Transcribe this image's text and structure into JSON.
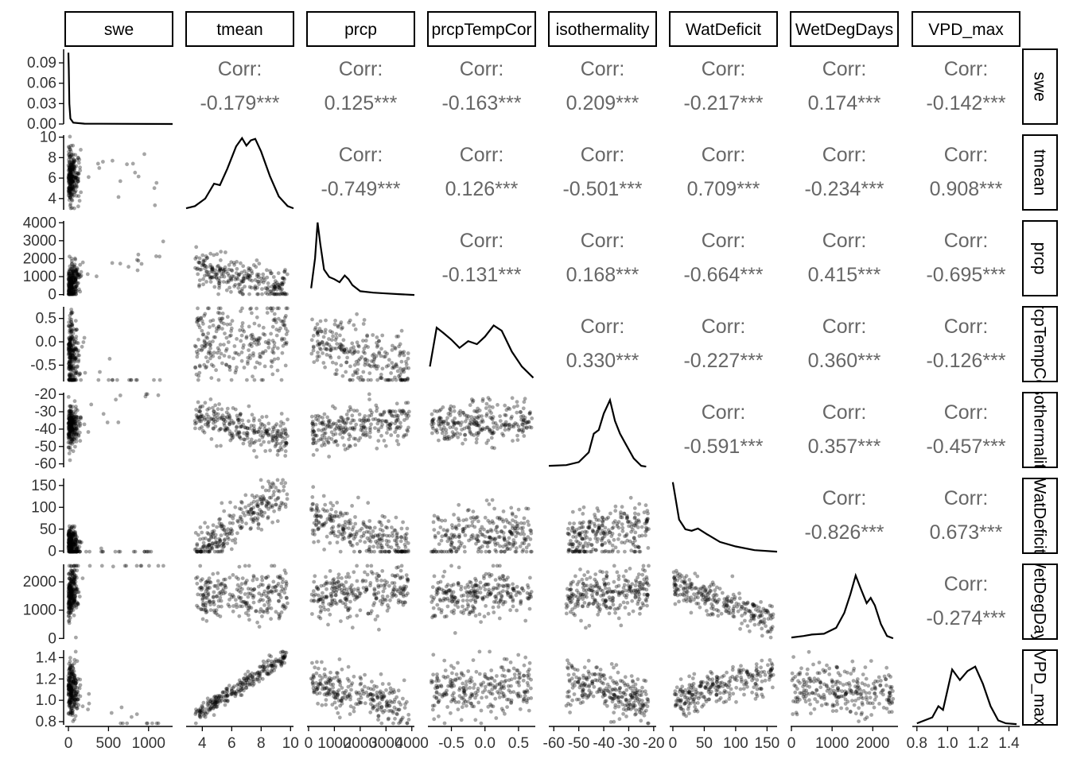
{
  "chart_data": {
    "type": "scatter-matrix",
    "variables": [
      "swe",
      "tmean",
      "prcp",
      "prcpTempCor",
      "isothermality",
      "WatDeficit",
      "WetDegDays",
      "VPD_max"
    ],
    "correlation_prefix": "Corr:",
    "correlations": [
      {
        "row": "swe",
        "col": "tmean",
        "value": "-0.179***"
      },
      {
        "row": "swe",
        "col": "prcp",
        "value": "0.125***"
      },
      {
        "row": "swe",
        "col": "prcpTempCor",
        "value": "-0.163***"
      },
      {
        "row": "swe",
        "col": "isothermality",
        "value": "0.209***"
      },
      {
        "row": "swe",
        "col": "WatDeficit",
        "value": "-0.217***"
      },
      {
        "row": "swe",
        "col": "WetDegDays",
        "value": "0.174***"
      },
      {
        "row": "swe",
        "col": "VPD_max",
        "value": "-0.142***"
      },
      {
        "row": "tmean",
        "col": "prcp",
        "value": "-0.749***"
      },
      {
        "row": "tmean",
        "col": "prcpTempCor",
        "value": "0.126***"
      },
      {
        "row": "tmean",
        "col": "isothermality",
        "value": "-0.501***"
      },
      {
        "row": "tmean",
        "col": "WatDeficit",
        "value": "0.709***"
      },
      {
        "row": "tmean",
        "col": "WetDegDays",
        "value": "-0.234***"
      },
      {
        "row": "tmean",
        "col": "VPD_max",
        "value": "0.908***"
      },
      {
        "row": "prcp",
        "col": "prcpTempCor",
        "value": "-0.131***"
      },
      {
        "row": "prcp",
        "col": "isothermality",
        "value": "0.168***"
      },
      {
        "row": "prcp",
        "col": "WatDeficit",
        "value": "-0.664***"
      },
      {
        "row": "prcp",
        "col": "WetDegDays",
        "value": "0.415***"
      },
      {
        "row": "prcp",
        "col": "VPD_max",
        "value": "-0.695***"
      },
      {
        "row": "prcpTempCor",
        "col": "isothermality",
        "value": "0.330***"
      },
      {
        "row": "prcpTempCor",
        "col": "WatDeficit",
        "value": "-0.227***"
      },
      {
        "row": "prcpTempCor",
        "col": "WetDegDays",
        "value": "0.360***"
      },
      {
        "row": "prcpTempCor",
        "col": "VPD_max",
        "value": "-0.126***"
      },
      {
        "row": "isothermality",
        "col": "WatDeficit",
        "value": "-0.591***"
      },
      {
        "row": "isothermality",
        "col": "WetDegDays",
        "value": "0.357***"
      },
      {
        "row": "isothermality",
        "col": "VPD_max",
        "value": "-0.457***"
      },
      {
        "row": "WatDeficit",
        "col": "WetDegDays",
        "value": "-0.826***"
      },
      {
        "row": "WatDeficit",
        "col": "VPD_max",
        "value": "0.673***"
      },
      {
        "row": "WetDegDays",
        "col": "VPD_max",
        "value": "-0.274***"
      }
    ],
    "axes": {
      "swe": {
        "range": [
          -40,
          1300
        ],
        "ticks": [
          0,
          500,
          1000
        ],
        "tick_labels": [
          "0",
          "500",
          "1000"
        ],
        "density_range": [
          0,
          0.11
        ],
        "density_ticks": [
          0.0,
          0.03,
          0.06,
          0.09
        ],
        "density_tick_labels": [
          "0.00",
          "0.03",
          "0.06",
          "0.09"
        ]
      },
      "tmean": {
        "range": [
          2.9,
          10.2
        ],
        "ticks": [
          4,
          6,
          8,
          10
        ],
        "tick_labels": [
          "4",
          "6",
          "8",
          "10"
        ]
      },
      "prcp": {
        "range": [
          -60,
          4100
        ],
        "ticks": [
          0,
          1000,
          2000,
          3000,
          4000
        ],
        "tick_labels": [
          "0",
          "1000",
          "2000",
          "3000",
          "4000"
        ]
      },
      "prcpTempCor": {
        "range": [
          -0.85,
          0.75
        ],
        "ticks": [
          -0.5,
          0.0,
          0.5
        ],
        "tick_labels": [
          "-0.5",
          "0.0",
          "0.5"
        ]
      },
      "isothermality": {
        "range": [
          -62,
          -19
        ],
        "ticks": [
          -60,
          -50,
          -40,
          -30,
          -20
        ],
        "tick_labels": [
          "-60",
          "-50",
          "-40",
          "-30",
          "-20"
        ]
      },
      "WatDeficit": {
        "range": [
          -5,
          166
        ],
        "ticks": [
          0,
          50,
          100,
          150
        ],
        "tick_labels": [
          "0",
          "50",
          "100",
          "150"
        ]
      },
      "WetDegDays": {
        "range": [
          -20,
          2620
        ],
        "ticks": [
          0,
          1000,
          2000
        ],
        "tick_labels": [
          "0",
          "1000",
          "2000"
        ]
      },
      "VPD_max": {
        "range": [
          0.77,
          1.47
        ],
        "ticks": [
          0.8,
          1.0,
          1.2,
          1.4
        ],
        "tick_labels": [
          "0.8",
          "1.0",
          "1.2",
          "1.4"
        ]
      }
    },
    "density_curves": {
      "swe": [
        [
          0,
          0.105
        ],
        [
          5,
          0.08
        ],
        [
          12,
          0.03
        ],
        [
          25,
          0.008
        ],
        [
          60,
          0.002
        ],
        [
          200,
          0.0005
        ],
        [
          1300,
          0.0
        ]
      ],
      "tmean": [
        [
          2.9,
          0.02
        ],
        [
          3.5,
          0.05
        ],
        [
          4.2,
          0.15
        ],
        [
          4.8,
          0.35
        ],
        [
          5.2,
          0.33
        ],
        [
          5.7,
          0.55
        ],
        [
          6.3,
          0.85
        ],
        [
          6.7,
          0.96
        ],
        [
          7.0,
          0.86
        ],
        [
          7.3,
          0.93
        ],
        [
          7.6,
          0.95
        ],
        [
          8.0,
          0.78
        ],
        [
          8.6,
          0.45
        ],
        [
          9.2,
          0.18
        ],
        [
          9.8,
          0.05
        ],
        [
          10.2,
          0.02
        ]
      ],
      "prcp": [
        [
          100,
          0.1
        ],
        [
          250,
          0.5
        ],
        [
          350,
          0.98
        ],
        [
          450,
          0.7
        ],
        [
          600,
          0.35
        ],
        [
          800,
          0.25
        ],
        [
          1000,
          0.22
        ],
        [
          1200,
          0.18
        ],
        [
          1400,
          0.27
        ],
        [
          1550,
          0.22
        ],
        [
          1700,
          0.14
        ],
        [
          2000,
          0.06
        ],
        [
          2500,
          0.04
        ],
        [
          3000,
          0.03
        ],
        [
          3500,
          0.02
        ],
        [
          4100,
          0.01
        ]
      ],
      "prcpTempCor": [
        [
          -0.82,
          0.2
        ],
        [
          -0.72,
          0.72
        ],
        [
          -0.62,
          0.65
        ],
        [
          -0.5,
          0.56
        ],
        [
          -0.38,
          0.45
        ],
        [
          -0.25,
          0.54
        ],
        [
          -0.12,
          0.5
        ],
        [
          0.0,
          0.6
        ],
        [
          0.13,
          0.75
        ],
        [
          0.25,
          0.68
        ],
        [
          0.4,
          0.4
        ],
        [
          0.55,
          0.2
        ],
        [
          0.72,
          0.05
        ]
      ],
      "isothermality": [
        [
          -62,
          0.02
        ],
        [
          -55,
          0.03
        ],
        [
          -50,
          0.07
        ],
        [
          -46,
          0.2
        ],
        [
          -44,
          0.45
        ],
        [
          -42,
          0.5
        ],
        [
          -40,
          0.72
        ],
        [
          -37.5,
          0.9
        ],
        [
          -35.5,
          0.62
        ],
        [
          -33.5,
          0.45
        ],
        [
          -31,
          0.3
        ],
        [
          -28,
          0.12
        ],
        [
          -25,
          0.02
        ],
        [
          -23,
          0.01
        ]
      ],
      "WatDeficit": [
        [
          0,
          0.95
        ],
        [
          3,
          0.8
        ],
        [
          10,
          0.45
        ],
        [
          20,
          0.32
        ],
        [
          30,
          0.3
        ],
        [
          40,
          0.33
        ],
        [
          55,
          0.25
        ],
        [
          75,
          0.15
        ],
        [
          100,
          0.09
        ],
        [
          130,
          0.04
        ],
        [
          166,
          0.02
        ]
      ],
      "WetDegDays": [
        [
          0,
          0.02
        ],
        [
          300,
          0.04
        ],
        [
          500,
          0.06
        ],
        [
          800,
          0.07
        ],
        [
          1100,
          0.15
        ],
        [
          1300,
          0.35
        ],
        [
          1450,
          0.6
        ],
        [
          1580,
          0.85
        ],
        [
          1700,
          0.68
        ],
        [
          1850,
          0.48
        ],
        [
          1950,
          0.55
        ],
        [
          2050,
          0.45
        ],
        [
          2200,
          0.2
        ],
        [
          2350,
          0.04
        ],
        [
          2500,
          0.01
        ]
      ],
      "VPD_max": [
        [
          0.8,
          0.02
        ],
        [
          0.9,
          0.1
        ],
        [
          0.94,
          0.25
        ],
        [
          0.97,
          0.2
        ],
        [
          1.03,
          0.74
        ],
        [
          1.08,
          0.6
        ],
        [
          1.13,
          0.72
        ],
        [
          1.18,
          0.78
        ],
        [
          1.23,
          0.55
        ],
        [
          1.28,
          0.25
        ],
        [
          1.33,
          0.06
        ],
        [
          1.38,
          0.02
        ],
        [
          1.45,
          0.01
        ]
      ]
    },
    "scatter_trends": {
      "tmean|swe": {
        "x": [
          0,
          120
        ],
        "y": [
          6,
          6
        ],
        "spread": 1.2
      },
      "prcp|swe": {
        "x": [
          0,
          120
        ],
        "y": [
          600,
          800
        ],
        "spread": 500
      },
      "prcp|tmean": {
        "x": [
          3.5,
          9.8
        ],
        "y": [
          1600,
          300
        ],
        "spread": 500
      },
      "prcpTempCor|swe": {
        "x": [
          0,
          150
        ],
        "y": [
          -0.2,
          -0.5
        ],
        "spread": 0.4
      },
      "prcpTempCor|tmean": {
        "x": [
          3.5,
          9.8
        ],
        "y": [
          0,
          0
        ],
        "spread": 0.45
      },
      "prcpTempCor|prcp": {
        "x": [
          100,
          3900
        ],
        "y": [
          0,
          -0.7
        ],
        "spread": 0.35
      },
      "isothermality|swe": {
        "x": [
          0,
          150
        ],
        "y": [
          -38,
          -35
        ],
        "spread": 6
      },
      "isothermality|tmean": {
        "x": [
          3.5,
          9.8
        ],
        "y": [
          -33,
          -45
        ],
        "spread": 5
      },
      "isothermality|prcp": {
        "x": [
          100,
          3900
        ],
        "y": [
          -42,
          -35
        ],
        "spread": 6
      },
      "isothermality|prcpTempCor": {
        "x": [
          -0.8,
          0.7
        ],
        "y": [
          -38,
          -35
        ],
        "spread": 6
      },
      "WatDeficit|swe": {
        "x": [
          0,
          150
        ],
        "y": [
          20,
          5
        ],
        "spread": 18
      },
      "WatDeficit|tmean": {
        "x": [
          3.5,
          9.8
        ],
        "y": [
          2,
          140
        ],
        "spread": 25
      },
      "WatDeficit|prcp": {
        "x": [
          100,
          3900
        ],
        "y": [
          80,
          2
        ],
        "spread": 25
      },
      "WatDeficit|prcpTempCor": {
        "x": [
          -0.8,
          0.7
        ],
        "y": [
          35,
          30
        ],
        "spread": 30
      },
      "WatDeficit|isothermality": {
        "x": [
          -55,
          -22
        ],
        "y": [
          20,
          55
        ],
        "spread": 30
      },
      "WetDegDays|swe": {
        "x": [
          0,
          150
        ],
        "y": [
          1500,
          2000
        ],
        "spread": 400
      },
      "WetDegDays|tmean": {
        "x": [
          3.5,
          9.8
        ],
        "y": [
          1500,
          1500
        ],
        "spread": 450
      },
      "WetDegDays|prcp": {
        "x": [
          100,
          3900
        ],
        "y": [
          1500,
          1700
        ],
        "spread": 400
      },
      "WetDegDays|prcpTempCor": {
        "x": [
          -0.8,
          0.7
        ],
        "y": [
          1500,
          1700
        ],
        "spread": 400
      },
      "WetDegDays|isothermality": {
        "x": [
          -55,
          -22
        ],
        "y": [
          1400,
          1800
        ],
        "spread": 400
      },
      "WetDegDays|WatDeficit": {
        "x": [
          0,
          160
        ],
        "y": [
          1900,
          600
        ],
        "spread": 300
      },
      "VPD_max|swe": {
        "x": [
          0,
          150
        ],
        "y": [
          1.12,
          1.05
        ],
        "spread": 0.12
      },
      "VPD_max|tmean": {
        "x": [
          3.5,
          9.8
        ],
        "y": [
          0.86,
          1.42
        ],
        "spread": 0.04
      },
      "VPD_max|prcp": {
        "x": [
          100,
          3900
        ],
        "y": [
          1.2,
          0.9
        ],
        "spread": 0.1
      },
      "VPD_max|prcpTempCor": {
        "x": [
          -0.8,
          0.7
        ],
        "y": [
          1.1,
          1.12
        ],
        "spread": 0.12
      },
      "VPD_max|isothermality": {
        "x": [
          -55,
          -22
        ],
        "y": [
          1.2,
          0.95
        ],
        "spread": 0.1
      },
      "VPD_max|WatDeficit": {
        "x": [
          0,
          160
        ],
        "y": [
          1.0,
          1.25
        ],
        "spread": 0.08
      },
      "VPD_max|WetDegDays": {
        "x": [
          0,
          2500
        ],
        "y": [
          1.15,
          1.05
        ],
        "spread": 0.12
      }
    }
  }
}
